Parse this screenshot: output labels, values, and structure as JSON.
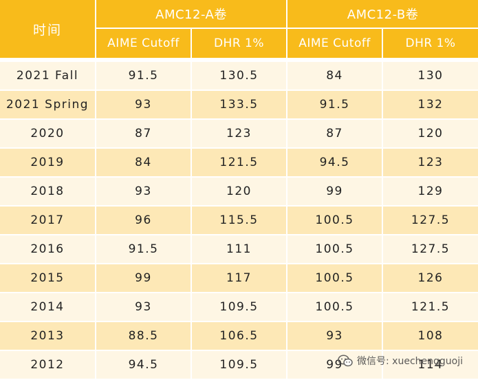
{
  "header": {
    "time_label": "时间",
    "group_a": "AMC12-A卷",
    "group_b": "AMC12-B卷",
    "a_col1": "AIME Cutoff",
    "a_col2": "DHR 1%",
    "b_col1": "AIME Cutoff",
    "b_col2": "DHR 1%"
  },
  "rows": [
    {
      "time": "2021 Fall",
      "a_cutoff": "91.5",
      "a_dhr": "130.5",
      "b_cutoff": "84",
      "b_dhr": "130"
    },
    {
      "time": "2021 Spring",
      "a_cutoff": "93",
      "a_dhr": "133.5",
      "b_cutoff": "91.5",
      "b_dhr": "132"
    },
    {
      "time": "2020",
      "a_cutoff": "87",
      "a_dhr": "123",
      "b_cutoff": "87",
      "b_dhr": "120"
    },
    {
      "time": "2019",
      "a_cutoff": "84",
      "a_dhr": "121.5",
      "b_cutoff": "94.5",
      "b_dhr": "123"
    },
    {
      "time": "2018",
      "a_cutoff": "93",
      "a_dhr": "120",
      "b_cutoff": "99",
      "b_dhr": "129"
    },
    {
      "time": "2017",
      "a_cutoff": "96",
      "a_dhr": "115.5",
      "b_cutoff": "100.5",
      "b_dhr": "127.5"
    },
    {
      "time": "2016",
      "a_cutoff": "91.5",
      "a_dhr": "111",
      "b_cutoff": "100.5",
      "b_dhr": "127.5"
    },
    {
      "time": "2015",
      "a_cutoff": "99",
      "a_dhr": "117",
      "b_cutoff": "100.5",
      "b_dhr": "126"
    },
    {
      "time": "2014",
      "a_cutoff": "93",
      "a_dhr": "109.5",
      "b_cutoff": "100.5",
      "b_dhr": "121.5"
    },
    {
      "time": "2013",
      "a_cutoff": "88.5",
      "a_dhr": "106.5",
      "b_cutoff": "93",
      "b_dhr": "108"
    },
    {
      "time": "2012",
      "a_cutoff": "94.5",
      "a_dhr": "109.5",
      "b_cutoff": "99",
      "b_dhr": "114"
    }
  ],
  "watermark": {
    "text": "微信号: xuechengguoji",
    "icon": "wechat-icon"
  },
  "colors": {
    "header_bg": "#f8bb1b",
    "row_light": "#fef6e4",
    "row_dark": "#fde8b6"
  }
}
